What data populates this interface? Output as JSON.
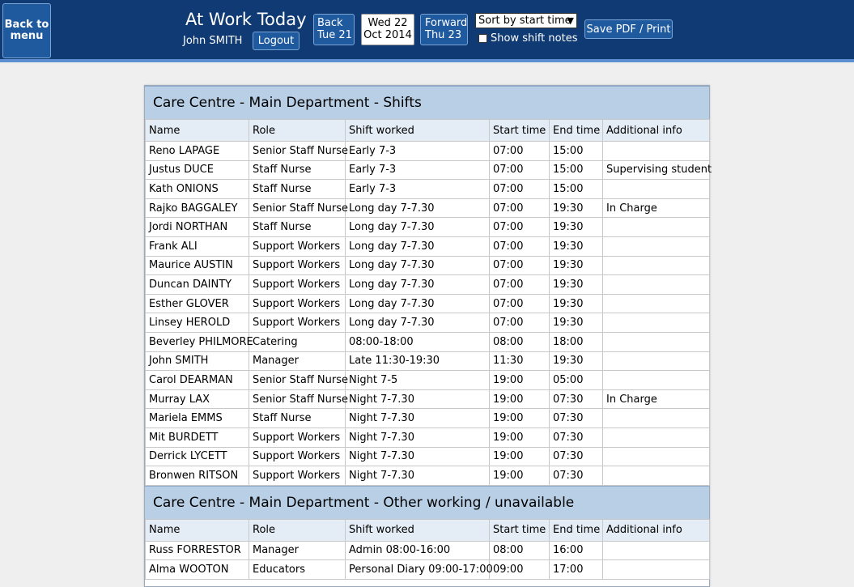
{
  "header": {
    "back_to_menu": "Back to menu",
    "title": "At Work Today",
    "user_name": "John SMITH",
    "logout": "Logout",
    "back_line1": "Back",
    "back_line2": "Tue 21",
    "date_line1": "Wed 22",
    "date_line2": "Oct 2014",
    "forward_line1": "Forward",
    "forward_line2": "Thu 23",
    "sort_selected": "Sort by start time",
    "show_notes_label": "Show shift notes",
    "save_pdf": "Save PDF / Print"
  },
  "columns": [
    "Name",
    "Role",
    "Shift worked",
    "Start time",
    "End time",
    "Additional info"
  ],
  "sections": [
    {
      "title": "Care Centre - Main Department - Shifts",
      "rows": [
        [
          "Reno LAPAGE",
          "Senior Staff Nurse",
          "Early 7-3",
          "07:00",
          "15:00",
          ""
        ],
        [
          "Justus DUCE",
          "Staff Nurse",
          "Early 7-3",
          "07:00",
          "15:00",
          "Supervising student"
        ],
        [
          "Kath ONIONS",
          "Staff Nurse",
          "Early 7-3",
          "07:00",
          "15:00",
          ""
        ],
        [
          "Rajko BAGGALEY",
          "Senior Staff Nurse",
          "Long day 7-7.30",
          "07:00",
          "19:30",
          "In Charge"
        ],
        [
          "Jordi NORTHAN",
          "Staff Nurse",
          "Long day 7-7.30",
          "07:00",
          "19:30",
          ""
        ],
        [
          "Frank ALI",
          "Support Workers",
          "Long day 7-7.30",
          "07:00",
          "19:30",
          ""
        ],
        [
          "Maurice AUSTIN",
          "Support Workers",
          "Long day 7-7.30",
          "07:00",
          "19:30",
          ""
        ],
        [
          "Duncan DAINTY",
          "Support Workers",
          "Long day 7-7.30",
          "07:00",
          "19:30",
          ""
        ],
        [
          "Esther GLOVER",
          "Support Workers",
          "Long day 7-7.30",
          "07:00",
          "19:30",
          ""
        ],
        [
          "Linsey HEROLD",
          "Support Workers",
          "Long day 7-7.30",
          "07:00",
          "19:30",
          ""
        ],
        [
          "Beverley PHILMORE",
          "Catering",
          "08:00-18:00",
          "08:00",
          "18:00",
          ""
        ],
        [
          "John SMITH",
          "Manager",
          "Late 11:30-19:30",
          "11:30",
          "19:30",
          ""
        ],
        [
          "Carol DEARMAN",
          "Senior Staff Nurse",
          "Night 7-5",
          "19:00",
          "05:00",
          ""
        ],
        [
          "Murray LAX",
          "Senior Staff Nurse",
          "Night 7-7.30",
          "19:00",
          "07:30",
          "In Charge"
        ],
        [
          "Mariela EMMS",
          "Staff Nurse",
          "Night 7-7.30",
          "19:00",
          "07:30",
          ""
        ],
        [
          "Mit BURDETT",
          "Support Workers",
          "Night 7-7.30",
          "19:00",
          "07:30",
          ""
        ],
        [
          "Derrick LYCETT",
          "Support Workers",
          "Night 7-7.30",
          "19:00",
          "07:30",
          ""
        ],
        [
          "Bronwen RITSON",
          "Support Workers",
          "Night 7-7.30",
          "19:00",
          "07:30",
          ""
        ]
      ]
    },
    {
      "title": "Care Centre - Main Department - Other working / unavailable",
      "rows": [
        [
          "Russ FORRESTOR",
          "Manager",
          "Admin 08:00-16:00",
          "08:00",
          "16:00",
          ""
        ],
        [
          "Alma WOOTON",
          "Educators",
          "Personal Diary 09:00-17:00",
          "09:00",
          "17:00",
          ""
        ]
      ]
    }
  ],
  "colors": {
    "header_bg": "#0f3a74",
    "button_bg": "#1f5a9f",
    "section_bg": "#b8cfe6",
    "column_header_bg": "#e4ecf5"
  },
  "icons": {
    "sort_dropdown": "chevron-down-icon"
  }
}
